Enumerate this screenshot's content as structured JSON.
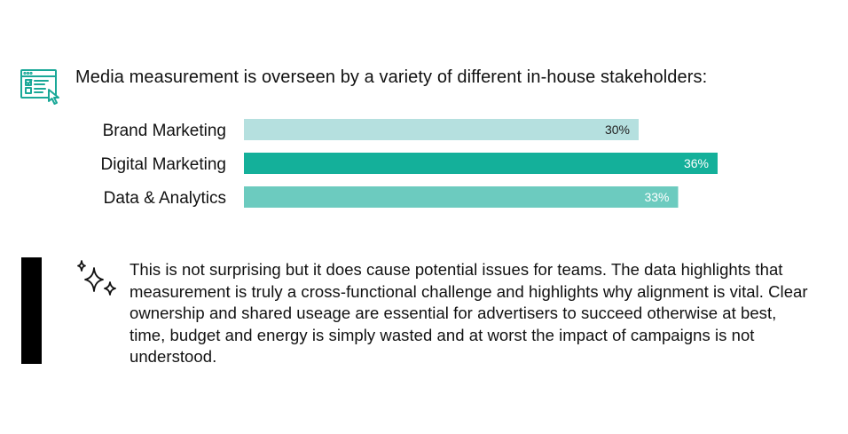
{
  "heading": "Media measurement is overseen by a variety of different in-house stakeholders:",
  "icons": {
    "form": "checklist-form-icon",
    "sparkle": "sparkle-icon"
  },
  "colors": {
    "brand": "#b5e0df",
    "digital": "#14b09a",
    "data": "#6ccbbf",
    "icon_teal": "#1aa898",
    "sidebar": "#000000"
  },
  "chart_data": {
    "type": "bar",
    "orientation": "horizontal",
    "categories": [
      "Brand Marketing",
      "Digital Marketing",
      "Data & Analytics"
    ],
    "values": [
      30,
      36,
      33
    ],
    "value_labels": [
      "30%",
      "36%",
      "33%"
    ],
    "bar_colors": [
      "#b5e0df",
      "#14b09a",
      "#6ccbbf"
    ],
    "label_colors": [
      "#222222",
      "#ffffff",
      "#ffffff"
    ],
    "xlim": [
      0,
      36
    ],
    "grid": false,
    "legend": "none"
  },
  "note": {
    "lines": [
      "This is not surprising but it does cause potential issues for teams. The data highlights that",
      "measurement is truly a cross-functional challenge and highlights why alignment is vital. Clear",
      "ownership and shared useage are essential for advertisers to succeed otherwise at best,",
      "time, budget and energy is simply wasted and at worst the impact of campaigns is not",
      "understood."
    ]
  }
}
